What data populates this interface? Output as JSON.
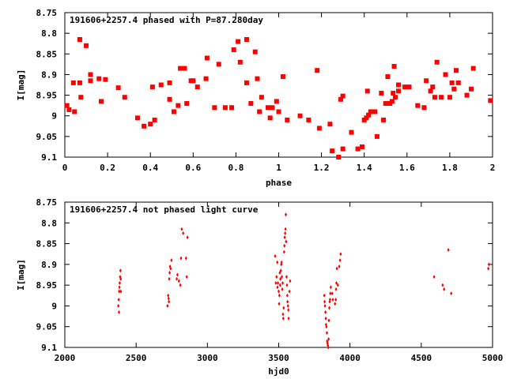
{
  "chart_data": [
    {
      "type": "scatter",
      "title": "191606+2257.4 phased with P=87.280day",
      "xlabel": "phase",
      "ylabel": "I[mag]",
      "xlim": [
        0,
        2
      ],
      "ylim": [
        9.1,
        8.75
      ],
      "y_inverted": true,
      "grid": false,
      "marker_color": "#ff0000",
      "marker": "filled-square",
      "xticks": [
        "0",
        "0.2",
        "0.4",
        "0.6",
        "0.8",
        "1",
        "1.2",
        "1.4",
        "1.6",
        "1.8",
        "2"
      ],
      "xtick_values": [
        0,
        0.2,
        0.4,
        0.6,
        0.8,
        1,
        1.2,
        1.4,
        1.6,
        1.8,
        2
      ],
      "yticks": [
        "8.75",
        "8.8",
        "8.85",
        "8.9",
        "8.95",
        "9",
        "9.05",
        "9.1"
      ],
      "ytick_values": [
        8.75,
        8.8,
        8.85,
        8.9,
        8.95,
        9,
        9.05,
        9.1
      ],
      "points": [
        [
          0.01,
          8.975
        ],
        [
          0.02,
          8.985
        ],
        [
          0.04,
          8.92
        ],
        [
          0.045,
          8.99
        ],
        [
          0.07,
          8.815
        ],
        [
          0.07,
          8.92
        ],
        [
          0.075,
          8.955
        ],
        [
          0.1,
          8.83
        ],
        [
          0.12,
          8.9
        ],
        [
          0.12,
          8.915
        ],
        [
          0.16,
          8.91
        ],
        [
          0.17,
          8.965
        ],
        [
          0.19,
          8.912
        ],
        [
          0.25,
          8.932
        ],
        [
          0.28,
          8.955
        ],
        [
          0.34,
          9.005
        ],
        [
          0.37,
          9.025
        ],
        [
          0.4,
          9.02
        ],
        [
          0.41,
          8.93
        ],
        [
          0.42,
          9.01
        ],
        [
          0.45,
          8.925
        ],
        [
          0.49,
          8.92
        ],
        [
          0.49,
          8.96
        ],
        [
          0.51,
          8.99
        ],
        [
          0.53,
          8.975
        ],
        [
          0.54,
          8.885
        ],
        [
          0.56,
          8.885
        ],
        [
          0.57,
          8.97
        ],
        [
          0.59,
          8.915
        ],
        [
          0.6,
          8.915
        ],
        [
          0.62,
          8.93
        ],
        [
          0.66,
          8.91
        ],
        [
          0.665,
          8.86
        ],
        [
          0.7,
          8.98
        ],
        [
          0.72,
          8.875
        ],
        [
          0.75,
          8.98
        ],
        [
          0.78,
          8.98
        ],
        [
          0.79,
          8.84
        ],
        [
          0.81,
          8.82
        ],
        [
          0.82,
          8.87
        ],
        [
          0.85,
          8.815
        ],
        [
          0.85,
          8.92
        ],
        [
          0.87,
          8.97
        ],
        [
          0.89,
          8.845
        ],
        [
          0.9,
          8.91
        ],
        [
          0.91,
          8.99
        ],
        [
          0.92,
          8.955
        ],
        [
          0.95,
          8.98
        ],
        [
          0.96,
          9.005
        ],
        [
          0.97,
          8.98
        ],
        [
          0.99,
          8.965
        ],
        [
          1.0,
          8.99
        ],
        [
          1.02,
          8.905
        ],
        [
          1.04,
          9.01
        ],
        [
          1.1,
          9.0
        ],
        [
          1.14,
          9.01
        ],
        [
          1.18,
          8.89
        ],
        [
          1.19,
          9.03
        ],
        [
          1.24,
          9.02
        ],
        [
          1.25,
          9.085
        ],
        [
          1.28,
          9.1
        ],
        [
          1.29,
          8.96
        ],
        [
          1.3,
          8.952
        ],
        [
          1.3,
          9.08
        ],
        [
          1.34,
          9.04
        ],
        [
          1.37,
          9.08
        ],
        [
          1.39,
          9.075
        ],
        [
          1.4,
          9.01
        ],
        [
          1.41,
          9.005
        ],
        [
          1.415,
          8.94
        ],
        [
          1.42,
          8.998
        ],
        [
          1.43,
          8.99
        ],
        [
          1.45,
          8.99
        ],
        [
          1.46,
          9.05
        ],
        [
          1.48,
          8.945
        ],
        [
          1.49,
          9.01
        ],
        [
          1.5,
          8.97
        ],
        [
          1.51,
          8.905
        ],
        [
          1.52,
          8.97
        ],
        [
          1.53,
          8.965
        ],
        [
          1.535,
          8.945
        ],
        [
          1.54,
          8.88
        ],
        [
          1.545,
          8.955
        ],
        [
          1.56,
          8.94
        ],
        [
          1.56,
          8.925
        ],
        [
          1.59,
          8.93
        ],
        [
          1.61,
          8.93
        ],
        [
          1.65,
          8.975
        ],
        [
          1.68,
          8.98
        ],
        [
          1.69,
          8.915
        ],
        [
          1.71,
          8.94
        ],
        [
          1.72,
          8.93
        ],
        [
          1.73,
          8.955
        ],
        [
          1.74,
          8.87
        ],
        [
          1.76,
          8.955
        ],
        [
          1.78,
          8.9
        ],
        [
          1.8,
          8.955
        ],
        [
          1.81,
          8.92
        ],
        [
          1.82,
          8.935
        ],
        [
          1.83,
          8.89
        ],
        [
          1.84,
          8.92
        ],
        [
          1.88,
          8.95
        ],
        [
          1.9,
          8.935
        ],
        [
          1.91,
          8.885
        ],
        [
          1.99,
          8.963
        ]
      ]
    },
    {
      "type": "scatter",
      "title": "191606+2257.4 not phased light curve",
      "xlabel": "hjd0",
      "ylabel": "I[mag]",
      "xlim": [
        2000,
        5000
      ],
      "ylim": [
        9.1,
        8.75
      ],
      "y_inverted": true,
      "grid": false,
      "marker_color": "#ff0000",
      "marker": "small-diamond",
      "xticks": [
        "2000",
        "2500",
        "3000",
        "3500",
        "4000",
        "4500",
        "5000"
      ],
      "xtick_values": [
        2000,
        2500,
        3000,
        3500,
        4000,
        4500,
        5000
      ],
      "yticks": [
        "8.75",
        "8.8",
        "8.85",
        "8.9",
        "8.95",
        "9",
        "9.05",
        "9.1"
      ],
      "ytick_values": [
        8.75,
        8.8,
        8.85,
        8.9,
        8.95,
        9,
        9.05,
        9.1
      ],
      "points": [
        [
          2375,
          9.0
        ],
        [
          2378,
          8.985
        ],
        [
          2380,
          9.015
        ],
        [
          2381,
          8.965
        ],
        [
          2383,
          8.955
        ],
        [
          2385,
          8.945
        ],
        [
          2388,
          8.93
        ],
        [
          2390,
          8.915
        ],
        [
          2392,
          8.935
        ],
        [
          2393,
          8.965
        ],
        [
          2720,
          9.0
        ],
        [
          2725,
          8.975
        ],
        [
          2728,
          8.982
        ],
        [
          2730,
          8.99
        ],
        [
          2732,
          8.935
        ],
        [
          2735,
          8.92
        ],
        [
          2738,
          8.905
        ],
        [
          2742,
          8.91
        ],
        [
          2748,
          8.89
        ],
        [
          2785,
          8.935
        ],
        [
          2790,
          8.925
        ],
        [
          2800,
          8.94
        ],
        [
          2810,
          8.95
        ],
        [
          2815,
          8.885
        ],
        [
          2820,
          8.815
        ],
        [
          2830,
          8.825
        ],
        [
          2850,
          8.885
        ],
        [
          2855,
          8.93
        ],
        [
          2860,
          8.835
        ],
        [
          3475,
          8.88
        ],
        [
          3480,
          8.945
        ],
        [
          3485,
          8.93
        ],
        [
          3490,
          8.895
        ],
        [
          3492,
          8.955
        ],
        [
          3495,
          8.945
        ],
        [
          3500,
          8.965
        ],
        [
          3503,
          8.995
        ],
        [
          3505,
          8.975
        ],
        [
          3508,
          8.92
        ],
        [
          3510,
          8.95
        ],
        [
          3512,
          8.935
        ],
        [
          3515,
          8.915
        ],
        [
          3518,
          8.9
        ],
        [
          3520,
          8.895
        ],
        [
          3522,
          8.93
        ],
        [
          3525,
          8.96
        ],
        [
          3528,
          8.945
        ],
        [
          3530,
          9.02
        ],
        [
          3532,
          9.03
        ],
        [
          3535,
          9.005
        ],
        [
          3538,
          8.87
        ],
        [
          3540,
          8.855
        ],
        [
          3542,
          8.835
        ],
        [
          3545,
          8.825
        ],
        [
          3548,
          8.815
        ],
        [
          3550,
          8.78
        ],
        [
          3552,
          8.845
        ],
        [
          3555,
          8.93
        ],
        [
          3558,
          8.95
        ],
        [
          3560,
          8.975
        ],
        [
          3562,
          8.99
        ],
        [
          3565,
          9.0
        ],
        [
          3568,
          9.01
        ],
        [
          3570,
          9.03
        ],
        [
          3575,
          8.965
        ],
        [
          3580,
          8.94
        ],
        [
          3820,
          8.975
        ],
        [
          3822,
          8.99
        ],
        [
          3825,
          9.0
        ],
        [
          3828,
          9.015
        ],
        [
          3830,
          9.03
        ],
        [
          3832,
          9.045
        ],
        [
          3835,
          9.05
        ],
        [
          3838,
          9.065
        ],
        [
          3840,
          9.085
        ],
        [
          3842,
          9.09
        ],
        [
          3845,
          9.095
        ],
        [
          3848,
          9.1
        ],
        [
          3850,
          9.08
        ],
        [
          3852,
          9.035
        ],
        [
          3855,
          9.005
        ],
        [
          3858,
          8.99
        ],
        [
          3860,
          8.985
        ],
        [
          3862,
          8.97
        ],
        [
          3865,
          8.955
        ],
        [
          3875,
          8.97
        ],
        [
          3880,
          8.985
        ],
        [
          3895,
          8.995
        ],
        [
          3900,
          8.985
        ],
        [
          3902,
          8.96
        ],
        [
          3905,
          8.945
        ],
        [
          3908,
          8.91
        ],
        [
          3915,
          8.95
        ],
        [
          3925,
          8.905
        ],
        [
          3930,
          8.89
        ],
        [
          3935,
          8.875
        ],
        [
          4590,
          8.93
        ],
        [
          4650,
          8.95
        ],
        [
          4660,
          8.96
        ],
        [
          4690,
          8.865
        ],
        [
          4710,
          8.97
        ],
        [
          4970,
          8.91
        ],
        [
          4975,
          8.9
        ]
      ]
    }
  ]
}
